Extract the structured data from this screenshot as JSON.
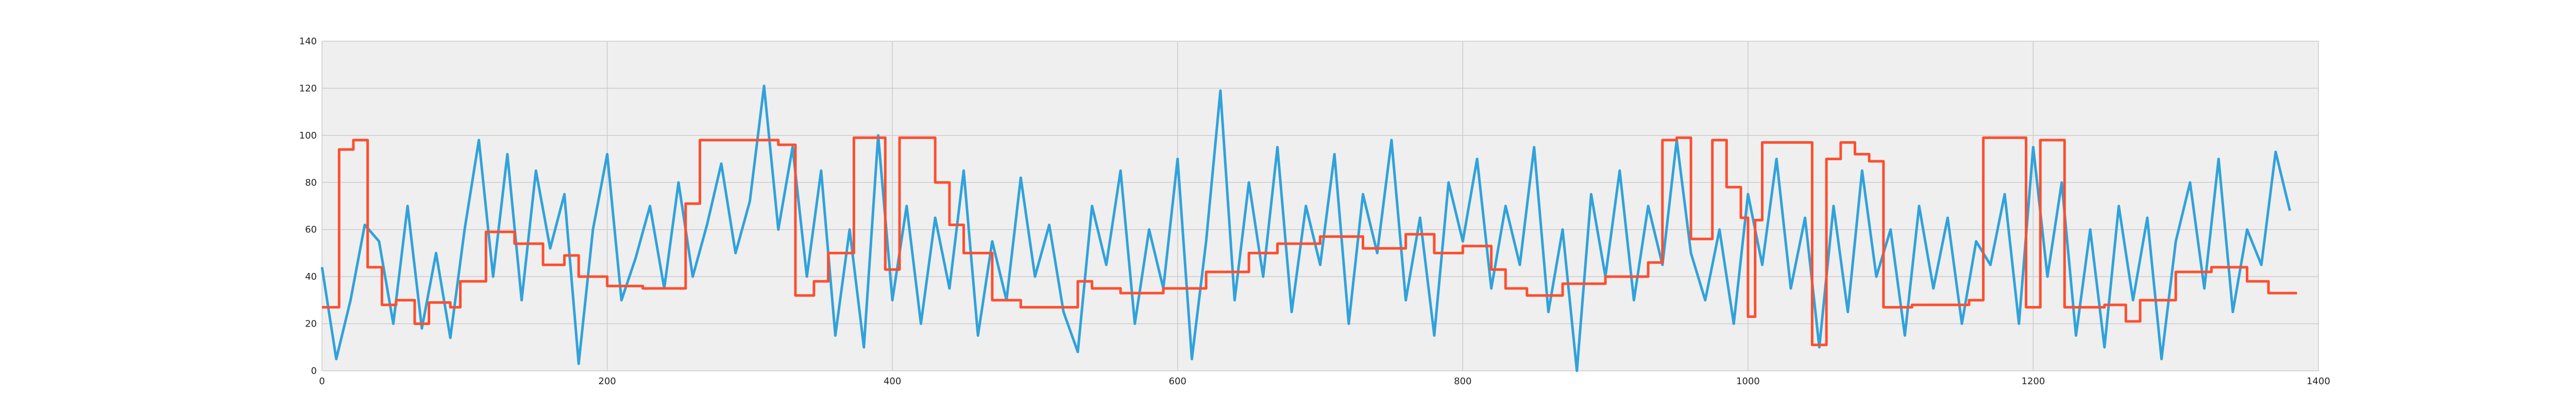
{
  "chart_data": {
    "type": "line",
    "grid": true,
    "background": "#efefef",
    "xlim": [
      0,
      1400
    ],
    "xticks": [
      0,
      200,
      400,
      600,
      800,
      1000,
      1200,
      1400
    ],
    "ylim": [
      0,
      140
    ],
    "yticks": [
      0,
      20,
      40,
      60,
      80,
      100,
      120,
      140
    ],
    "series": [
      {
        "color": "#30a2da",
        "x": [
          0,
          10,
          20,
          30,
          40,
          50,
          60,
          70,
          80,
          90,
          100,
          110,
          120,
          130,
          140,
          150,
          160,
          170,
          180,
          190,
          200,
          210,
          220,
          230,
          240,
          250,
          260,
          270,
          280,
          290,
          300,
          310,
          320,
          330,
          340,
          350,
          360,
          370,
          380,
          390,
          400,
          410,
          420,
          430,
          440,
          450,
          460,
          470,
          480,
          490,
          500,
          510,
          520,
          530,
          540,
          550,
          560,
          570,
          580,
          590,
          600,
          610,
          620,
          630,
          640,
          650,
          660,
          670,
          680,
          690,
          700,
          710,
          720,
          730,
          740,
          750,
          760,
          770,
          780,
          790,
          800,
          810,
          820,
          830,
          840,
          850,
          860,
          870,
          880,
          890,
          900,
          910,
          920,
          930,
          940,
          950,
          960,
          970,
          980,
          990,
          1000,
          1010,
          1020,
          1030,
          1040,
          1050,
          1060,
          1070,
          1080,
          1090,
          1100,
          1110,
          1120,
          1130,
          1140,
          1150,
          1160,
          1170,
          1180,
          1190,
          1200,
          1210,
          1220,
          1230,
          1240,
          1250,
          1260,
          1270,
          1280,
          1290,
          1300,
          1310,
          1320,
          1330,
          1340,
          1350,
          1360,
          1370,
          1380
        ],
        "values": [
          44,
          5,
          30,
          62,
          55,
          20,
          70,
          18,
          50,
          14,
          60,
          98,
          40,
          92,
          30,
          85,
          52,
          75,
          3,
          60,
          92,
          30,
          48,
          70,
          35,
          80,
          40,
          62,
          88,
          50,
          72,
          121,
          60,
          95,
          40,
          85,
          15,
          60,
          10,
          100,
          30,
          70,
          20,
          65,
          35,
          85,
          15,
          55,
          30,
          82,
          40,
          62,
          25,
          8,
          70,
          45,
          85,
          20,
          60,
          35,
          90,
          5,
          55,
          119,
          30,
          80,
          40,
          95,
          25,
          70,
          45,
          92,
          20,
          75,
          50,
          98,
          30,
          65,
          15,
          80,
          55,
          90,
          35,
          70,
          45,
          95,
          25,
          60,
          0,
          75,
          40,
          85,
          30,
          70,
          45,
          98,
          50,
          30,
          60,
          20,
          75,
          45,
          90,
          35,
          65,
          10,
          70,
          25,
          85,
          40,
          60,
          15,
          70,
          35,
          65,
          20,
          55,
          45,
          75,
          20,
          95,
          40,
          80,
          15,
          60,
          10,
          70,
          30,
          65,
          5,
          55,
          80,
          35,
          90,
          25,
          60,
          45,
          93,
          68
        ]
      },
      {
        "color": "#fc4f30",
        "x": [
          0,
          12,
          12,
          22,
          22,
          32,
          32,
          42,
          42,
          52,
          52,
          65,
          65,
          75,
          75,
          90,
          90,
          97,
          97,
          115,
          115,
          135,
          135,
          155,
          155,
          170,
          170,
          180,
          180,
          200,
          200,
          225,
          225,
          255,
          255,
          265,
          265,
          320,
          320,
          332,
          332,
          345,
          345,
          355,
          355,
          373,
          373,
          395,
          395,
          405,
          405,
          430,
          430,
          440,
          440,
          450,
          450,
          470,
          470,
          490,
          490,
          530,
          530,
          540,
          540,
          560,
          560,
          590,
          590,
          620,
          620,
          650,
          650,
          670,
          670,
          700,
          700,
          730,
          730,
          760,
          760,
          780,
          780,
          800,
          800,
          820,
          820,
          830,
          830,
          845,
          845,
          870,
          870,
          900,
          900,
          930,
          930,
          940,
          940,
          950,
          950,
          960,
          960,
          975,
          975,
          985,
          985,
          995,
          995,
          1000,
          1000,
          1005,
          1005,
          1010,
          1010,
          1045,
          1045,
          1055,
          1055,
          1065,
          1065,
          1075,
          1075,
          1085,
          1085,
          1095,
          1095,
          1115,
          1115,
          1155,
          1155,
          1165,
          1165,
          1195,
          1195,
          1205,
          1205,
          1222,
          1222,
          1250,
          1250,
          1265,
          1265,
          1275,
          1275,
          1300,
          1300,
          1325,
          1325,
          1350,
          1350,
          1365,
          1365,
          1385
        ],
        "values": [
          27,
          27,
          94,
          94,
          98,
          98,
          44,
          44,
          28,
          28,
          30,
          30,
          20,
          20,
          29,
          29,
          27,
          27,
          38,
          38,
          59,
          59,
          54,
          54,
          45,
          45,
          49,
          49,
          40,
          40,
          36,
          36,
          35,
          35,
          71,
          71,
          98,
          98,
          96,
          96,
          32,
          32,
          38,
          38,
          50,
          50,
          99,
          99,
          43,
          43,
          99,
          99,
          80,
          80,
          62,
          62,
          50,
          50,
          30,
          30,
          27,
          27,
          38,
          38,
          35,
          35,
          33,
          33,
          35,
          35,
          42,
          42,
          50,
          50,
          54,
          54,
          57,
          57,
          52,
          52,
          58,
          58,
          50,
          50,
          53,
          53,
          43,
          43,
          35,
          35,
          32,
          32,
          37,
          37,
          40,
          40,
          46,
          46,
          98,
          98,
          99,
          99,
          56,
          56,
          98,
          98,
          78,
          78,
          65,
          65,
          23,
          23,
          64,
          64,
          97,
          97,
          11,
          11,
          90,
          90,
          97,
          97,
          92,
          92,
          89,
          89,
          27,
          27,
          28,
          28,
          30,
          30,
          99,
          99,
          27,
          27,
          98,
          98,
          27,
          27,
          28,
          28,
          21,
          21,
          30,
          30,
          42,
          42,
          44,
          44,
          38,
          38,
          33,
          33
        ]
      }
    ]
  }
}
